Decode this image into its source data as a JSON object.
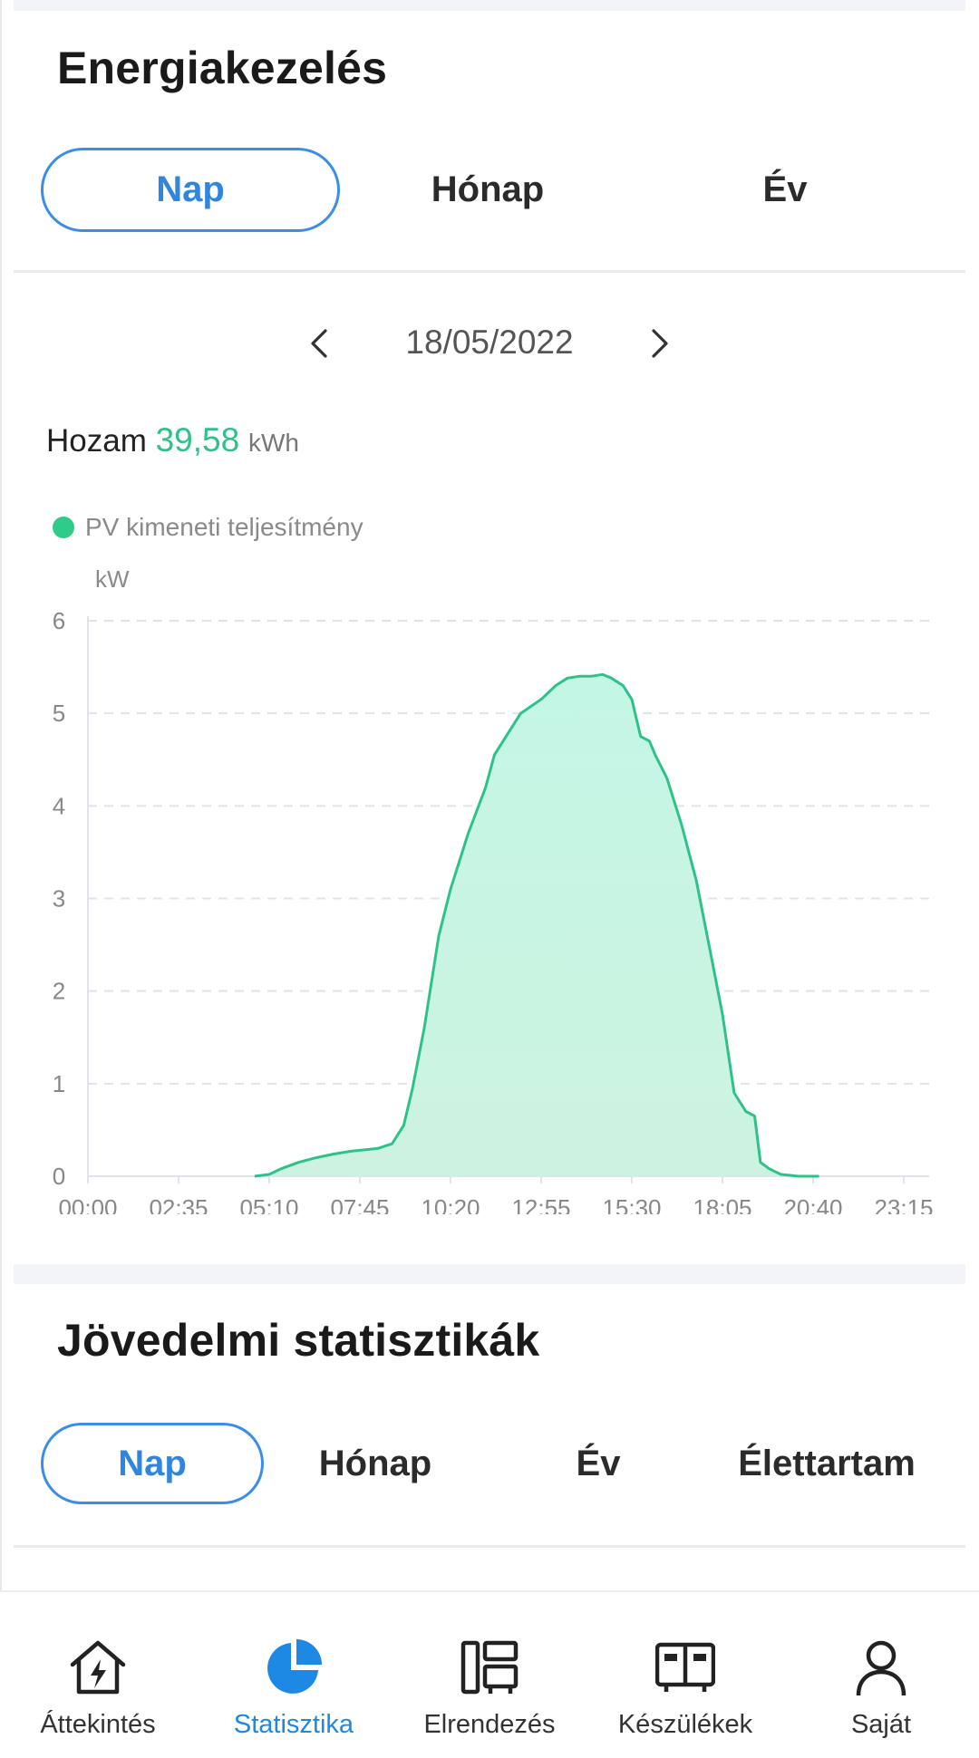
{
  "energy": {
    "title": "Energiakezelés",
    "tabs": [
      "Nap",
      "Hónap",
      "Év"
    ],
    "active_tab": "Nap",
    "date": "18/05/2022",
    "yield_label": "Hozam",
    "yield_value": "39,58",
    "yield_unit": "kWh"
  },
  "income": {
    "title": "Jövedelmi statisztikák",
    "tabs": [
      "Nap",
      "Hónap",
      "Év",
      "Élettartam"
    ],
    "active_tab": "Nap"
  },
  "nav": {
    "items": [
      {
        "label": "Áttekintés",
        "icon": "home-bolt-icon"
      },
      {
        "label": "Statisztika",
        "icon": "pie-chart-icon"
      },
      {
        "label": "Elrendezés",
        "icon": "layout-icon"
      },
      {
        "label": "Készülékek",
        "icon": "devices-icon"
      },
      {
        "label": "Saját",
        "icon": "person-icon"
      }
    ],
    "active": "Statisztika"
  },
  "colors": {
    "accent": "#2f86e0",
    "series": "#2ec289",
    "series_fill": "#c6f5e3"
  },
  "chart_data": {
    "type": "area",
    "ylabel": "kW",
    "ylim": [
      0,
      6
    ],
    "yticks": [
      "0",
      "1",
      "2",
      "3",
      "4",
      "5",
      "6"
    ],
    "xticks": [
      "00:00",
      "02:35",
      "05:10",
      "07:45",
      "10:20",
      "12:55",
      "15:30",
      "18:05",
      "20:40",
      "23:15"
    ],
    "grid": true,
    "legend": "top-left",
    "series": [
      {
        "name": "PV kimeneti teljesítmény",
        "x": [
          "04:45",
          "05:10",
          "05:30",
          "06:00",
          "06:30",
          "07:00",
          "07:30",
          "07:45",
          "08:15",
          "08:40",
          "09:00",
          "09:15",
          "09:35",
          "10:00",
          "10:20",
          "10:50",
          "11:20",
          "11:35",
          "12:00",
          "12:20",
          "12:55",
          "13:20",
          "13:40",
          "14:00",
          "14:20",
          "14:40",
          "14:55",
          "15:15",
          "15:30",
          "15:45",
          "16:00",
          "16:10",
          "16:30",
          "16:55",
          "17:20",
          "17:45",
          "18:05",
          "18:25",
          "18:45",
          "19:00",
          "19:10",
          "19:25",
          "19:45",
          "20:15",
          "20:40",
          "20:50"
        ],
        "y": [
          0.0,
          0.02,
          0.08,
          0.15,
          0.2,
          0.24,
          0.27,
          0.28,
          0.3,
          0.35,
          0.55,
          0.95,
          1.6,
          2.6,
          3.1,
          3.7,
          4.2,
          4.55,
          4.8,
          5.0,
          5.15,
          5.3,
          5.38,
          5.4,
          5.4,
          5.42,
          5.38,
          5.3,
          5.15,
          4.75,
          4.7,
          4.55,
          4.3,
          3.8,
          3.2,
          2.4,
          1.75,
          0.9,
          0.7,
          0.65,
          0.15,
          0.08,
          0.02,
          0.0,
          0.0,
          0.0
        ]
      }
    ]
  }
}
